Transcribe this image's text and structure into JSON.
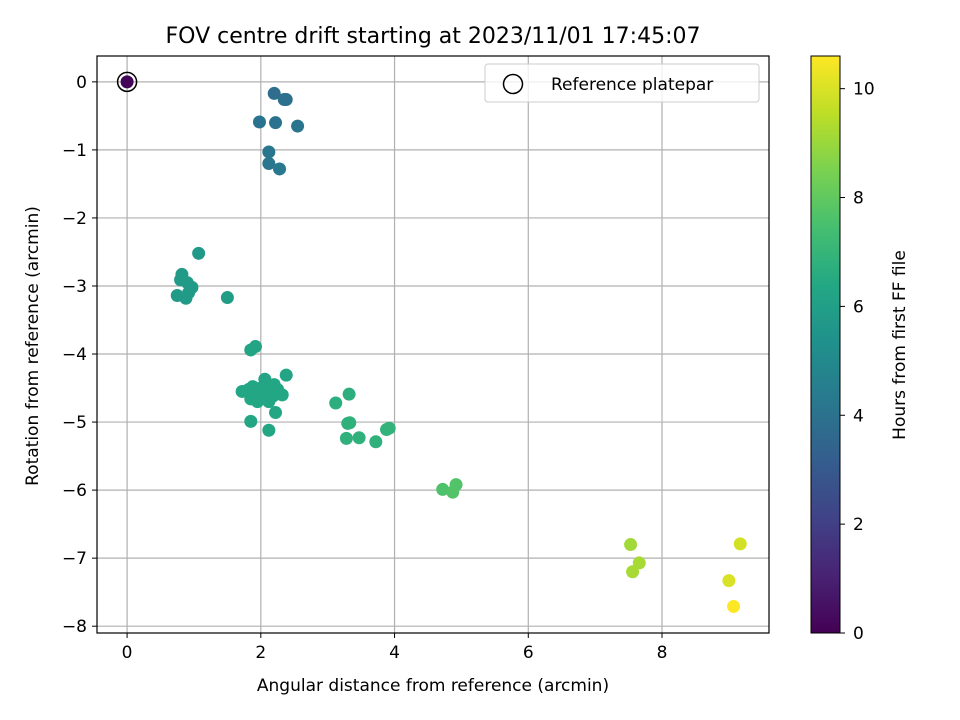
{
  "chart_data": {
    "type": "scatter",
    "title": "FOV centre drift starting at 2023/11/01 17:45:07",
    "xlabel": "Angular distance from reference (arcmin)",
    "ylabel": "Rotation from reference (arcmin)",
    "xlim": [
      -0.45,
      9.6
    ],
    "ylim": [
      -8.1,
      0.38
    ],
    "xticks": [
      0,
      2,
      4,
      6,
      8
    ],
    "yticks": [
      0,
      -1,
      -2,
      -3,
      -4,
      -5,
      -6,
      -7,
      -8
    ],
    "grid": true,
    "legend": {
      "entries": [
        "Reference platepar"
      ],
      "placement": "top-right"
    },
    "colorbar": {
      "label": "Hours from first FF file",
      "colormap": "viridis",
      "range": [
        0,
        10.6
      ],
      "ticks": [
        0,
        2,
        4,
        6,
        8,
        10
      ]
    },
    "reference_point": {
      "x": 0,
      "y": 0
    },
    "series": [
      {
        "x": [
          0.0,
          2.2,
          2.38,
          2.35,
          1.98,
          2.22,
          2.55,
          2.12,
          2.12,
          2.28,
          1.07,
          0.82,
          0.8,
          0.9,
          0.97,
          0.75,
          0.88,
          0.92,
          1.5,
          1.85,
          1.92,
          2.06,
          2.38,
          1.72,
          1.82,
          1.88,
          1.95,
          2.0,
          2.05,
          2.1,
          2.15,
          2.2,
          2.25,
          1.85,
          1.95,
          2.05,
          2.12,
          2.18,
          2.32,
          1.9,
          2.02,
          2.1,
          2.22,
          1.85,
          2.12,
          3.12,
          3.32,
          3.3,
          3.33,
          3.28,
          3.47,
          3.72,
          3.88,
          3.92,
          4.72,
          4.92,
          4.87,
          7.53,
          7.66,
          7.56,
          9.17,
          9.0,
          9.07
        ],
        "y": [
          0.0,
          -0.17,
          -0.26,
          -0.26,
          -0.59,
          -0.6,
          -0.65,
          -1.03,
          -1.2,
          -1.28,
          -2.52,
          -2.83,
          -2.91,
          -2.95,
          -3.02,
          -3.14,
          -3.18,
          -3.1,
          -3.17,
          -3.94,
          -3.89,
          -4.37,
          -4.31,
          -4.55,
          -4.52,
          -4.48,
          -4.6,
          -4.5,
          -4.62,
          -4.55,
          -4.5,
          -4.45,
          -4.52,
          -4.66,
          -4.7,
          -4.66,
          -4.7,
          -4.62,
          -4.6,
          -4.55,
          -4.58,
          -4.62,
          -4.86,
          -4.99,
          -5.12,
          -4.72,
          -4.59,
          -5.02,
          -5.01,
          -5.24,
          -5.23,
          -5.29,
          -5.11,
          -5.09,
          -5.99,
          -5.92,
          -6.03,
          -6.8,
          -7.07,
          -7.2,
          -6.79,
          -7.33,
          -7.71
        ],
        "hours": [
          0.1,
          3.8,
          3.9,
          3.9,
          4.0,
          4.0,
          4.1,
          4.2,
          4.2,
          4.3,
          5.7,
          5.8,
          5.8,
          5.8,
          5.8,
          5.8,
          5.8,
          5.8,
          5.9,
          6.2,
          6.2,
          6.2,
          6.2,
          6.3,
          6.3,
          6.3,
          6.3,
          6.3,
          6.3,
          6.3,
          6.3,
          6.3,
          6.3,
          6.3,
          6.3,
          6.3,
          6.3,
          6.3,
          6.3,
          6.3,
          6.3,
          6.3,
          6.3,
          6.3,
          6.3,
          6.7,
          6.7,
          6.8,
          6.8,
          6.8,
          6.8,
          6.8,
          6.9,
          6.9,
          7.6,
          7.7,
          7.7,
          9.1,
          9.2,
          9.2,
          9.9,
          10.0,
          10.6
        ]
      }
    ]
  }
}
